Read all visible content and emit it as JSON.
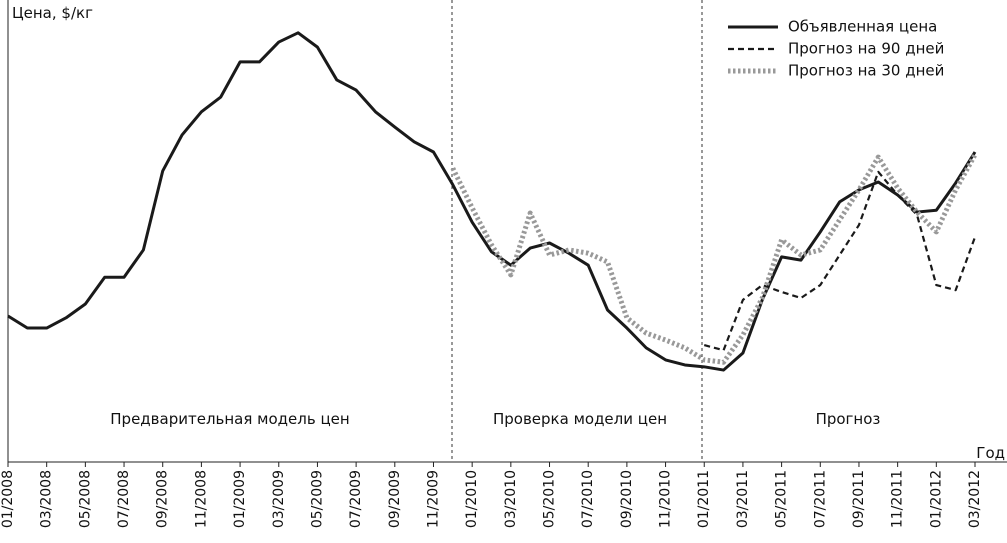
{
  "chart_data": {
    "type": "line",
    "y_label": "Цена, $/кг",
    "x_label": "Год",
    "annotations": [
      "Предварительная модель цен",
      "Проверка модели цен",
      "Прогноз"
    ],
    "categories": [
      "01/2008",
      null,
      "03/2008",
      null,
      "05/2008",
      null,
      "07/2008",
      null,
      "09/2008",
      null,
      "11/2008",
      null,
      "01/2009",
      null,
      "03/2009",
      null,
      "05/2009",
      null,
      "07/2009",
      null,
      "09/2009",
      null,
      "11/2009",
      null,
      "01/2010",
      null,
      "03/2010",
      null,
      "05/2010",
      null,
      "07/2010",
      null,
      "09/2010",
      null,
      "11/2010",
      null,
      "01/2011",
      null,
      "03/2011",
      null,
      "05/2011",
      null,
      "07/2011",
      null,
      "09/2011",
      null,
      "11/2011",
      null,
      "01/2012",
      null,
      "03/2012"
    ],
    "ylim": [
      0,
      100
    ],
    "legend": "top-right",
    "series": [
      {
        "name": "Объявленная цена",
        "color": "#1a1a1a",
        "style": "solid",
        "values": [
          31.6,
          29,
          29,
          31.2,
          34.2,
          40,
          40,
          45.9,
          63,
          70.8,
          75.8,
          79,
          86.6,
          86.6,
          90.9,
          92.9,
          89.8,
          82.7,
          80.5,
          75.8,
          72.5,
          69.3,
          67.1,
          60,
          51.9,
          45.5,
          42.6,
          46.3,
          47.4,
          45.2,
          42.6,
          32.9,
          29,
          24.7,
          22.1,
          21,
          20.6,
          19.9,
          23.6,
          35.1,
          44.4,
          43.7,
          49.8,
          56.3,
          58.9,
          60.6,
          57.8,
          54.1,
          54.5,
          60.4,
          67.1
        ]
      },
      {
        "name": "Прогноз на 90 дней",
        "color": "#1a1a1a",
        "style": "dashed",
        "values": [
          null,
          null,
          null,
          null,
          null,
          null,
          null,
          null,
          null,
          null,
          null,
          null,
          null,
          null,
          null,
          null,
          null,
          null,
          null,
          null,
          null,
          null,
          null,
          null,
          null,
          null,
          null,
          null,
          null,
          null,
          null,
          null,
          null,
          null,
          null,
          null,
          25.3,
          24.2,
          35.1,
          38.3,
          36.8,
          35.5,
          38.3,
          44.8,
          51.3,
          62.8,
          57.8,
          53.5,
          38.3,
          37.2,
          48.7
        ]
      },
      {
        "name": "Прогноз на 30 дней",
        "color": "#999999",
        "style": "dotted",
        "values": [
          null,
          null,
          null,
          null,
          null,
          null,
          null,
          null,
          null,
          null,
          null,
          null,
          null,
          null,
          null,
          null,
          null,
          null,
          null,
          null,
          null,
          null,
          null,
          63.6,
          55,
          47,
          40.5,
          53.9,
          44.8,
          45.9,
          45.2,
          43.3,
          31.2,
          27.9,
          26.4,
          24.7,
          22.1,
          21.6,
          27.5,
          35.5,
          48.1,
          44.8,
          45.9,
          52.4,
          58.9,
          66,
          59.3,
          54.1,
          49.8,
          58.9,
          66.5
        ]
      }
    ]
  }
}
